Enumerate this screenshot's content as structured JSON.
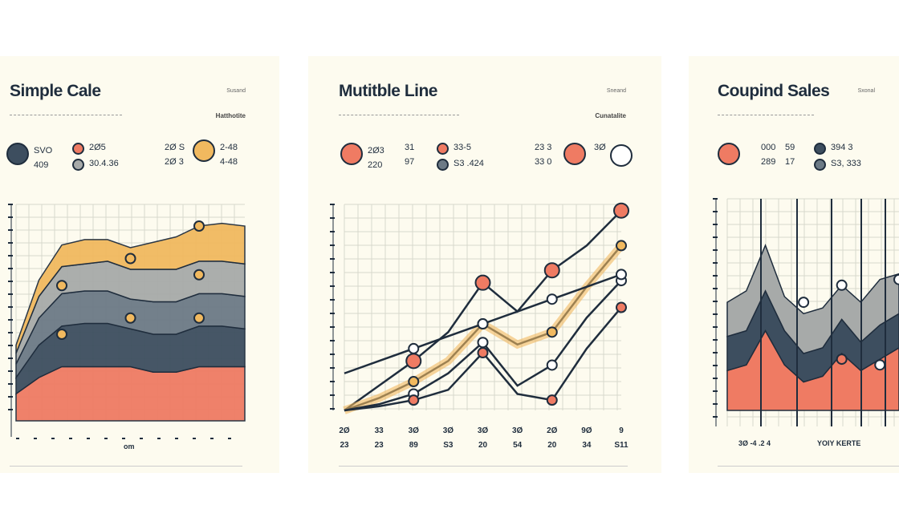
{
  "colors": {
    "navy": "#3d4e5f",
    "salmon": "#ef7b63",
    "gold": "#f1b95f",
    "gray": "#a7aaa9",
    "slate": "#6c7a86",
    "ink": "#1f2d3d"
  },
  "cards": [
    {
      "title": "Simple Cale",
      "tag": "Susand",
      "subtitle": "Hatthotite",
      "stats": [
        {
          "dot": "navy",
          "big": true,
          "lines": [
            "SVO",
            "409"
          ]
        },
        {
          "dot": "salmon",
          "lines": [
            "2Ø5"
          ]
        },
        {
          "dot": "gray",
          "lines": [
            "30.4.36"
          ]
        },
        {
          "lines": [
            "2Ø S",
            "2Ø 3"
          ]
        },
        {
          "dot": "gold",
          "big": true,
          "lines": [
            "2-48",
            "4-48"
          ]
        }
      ],
      "xlabel": "om"
    },
    {
      "title": "Mutitble Line",
      "tag": "Sneand",
      "subtitle": "Cunatalite",
      "stats": [
        {
          "dot": "salmon",
          "big": true,
          "lines": [
            "2Ø3",
            "220"
          ]
        },
        {
          "lines": [
            "31",
            "97"
          ]
        },
        {
          "dot": "salmon",
          "lines": [
            "33-5"
          ]
        },
        {
          "dot": "slate",
          "lines": [
            "S3 .424"
          ]
        },
        {
          "lines": [
            "23 3",
            "33 0"
          ]
        },
        {
          "dot": "salmon",
          "big": true,
          "lines": []
        },
        {
          "lines": [
            "3Ø"
          ]
        },
        {
          "dot": "white",
          "big": true,
          "lines": []
        }
      ],
      "ticks": [
        [
          "2Ø",
          "23"
        ],
        [
          "33",
          "23"
        ],
        [
          "3Ø",
          "89"
        ],
        [
          "3Ø",
          "S3"
        ],
        [
          "3Ø",
          "20"
        ],
        [
          "3Ø",
          "54"
        ],
        [
          "2Ø",
          "20"
        ],
        [
          "9Ø",
          "34"
        ],
        [
          "9",
          "S11"
        ]
      ]
    },
    {
      "title": "Coupind Sales",
      "tag": "Sxonal",
      "stats": [
        {
          "dot": "salmon",
          "big": true,
          "lines": []
        },
        {
          "lines": [
            "000",
            "289"
          ]
        },
        {
          "lines": [
            "59",
            "17"
          ]
        },
        {
          "dot": "navy",
          "lines": [
            "394 3"
          ]
        },
        {
          "dot": "slate",
          "lines": [
            "S3, 333"
          ]
        }
      ],
      "xlabel": "3Ø -4 .2 4",
      "xlabel2": "YOIY KERTE"
    }
  ],
  "chart_data": [
    {
      "type": "area",
      "title": "Simple Cale",
      "stacked": true,
      "x": [
        0,
        1,
        2,
        3,
        4,
        5,
        6,
        7,
        8,
        9,
        10
      ],
      "series": [
        {
          "color": "#ef7b63",
          "values": [
            10,
            16,
            20,
            20,
            20,
            20,
            18,
            18,
            20,
            20,
            20
          ]
        },
        {
          "color": "#3d4e5f",
          "values": [
            6,
            12,
            15,
            16,
            16,
            14,
            14,
            14,
            15,
            15,
            14
          ]
        },
        {
          "color": "#6c7a86",
          "values": [
            5,
            10,
            12,
            12,
            12,
            11,
            12,
            12,
            12,
            12,
            12
          ]
        },
        {
          "color": "#a7aaa9",
          "values": [
            4,
            8,
            10,
            10,
            11,
            11,
            12,
            12,
            12,
            12,
            12
          ]
        },
        {
          "color": "#f1b95f",
          "values": [
            3,
            6,
            8,
            9,
            8,
            8,
            10,
            12,
            13,
            14,
            14
          ]
        }
      ],
      "grid": true
    },
    {
      "type": "line",
      "title": "Mutitble Line",
      "x": [
        0,
        1,
        2,
        3,
        4,
        5,
        6,
        7,
        8
      ],
      "series": [
        {
          "color": "#1f2d3d",
          "marker": "#ef7b63",
          "values": [
            0,
            12,
            24,
            38,
            62,
            48,
            68,
            80,
            97
          ]
        },
        {
          "color": "#1f2d3d",
          "marker": "#f1b95f",
          "values": [
            0,
            6,
            14,
            24,
            42,
            32,
            38,
            60,
            80
          ]
        },
        {
          "color": "#1f2d3d",
          "marker": "#ffffff",
          "values": [
            0,
            3,
            8,
            18,
            33,
            12,
            22,
            45,
            63
          ]
        },
        {
          "color": "#1f2d3d",
          "marker": "#ef7b63",
          "values": [
            0,
            2,
            5,
            10,
            28,
            8,
            5,
            30,
            50
          ]
        },
        {
          "color": "#1f2d3d",
          "marker": "#ffffff",
          "values": [
            18,
            24,
            30,
            36,
            42,
            48,
            54,
            60,
            66
          ]
        }
      ],
      "grid": true
    },
    {
      "type": "area",
      "title": "Coupind Sales",
      "stacked": true,
      "x": [
        0,
        1,
        2,
        3,
        4,
        5,
        6,
        7,
        8,
        9
      ],
      "series": [
        {
          "color": "#ef7b63",
          "values": [
            14,
            16,
            28,
            16,
            10,
            12,
            20,
            14,
            18,
            22
          ]
        },
        {
          "color": "#3d4e5f",
          "values": [
            12,
            12,
            14,
            12,
            10,
            10,
            12,
            10,
            12,
            12
          ]
        },
        {
          "color": "#a7aaa9",
          "values": [
            12,
            14,
            16,
            12,
            14,
            14,
            12,
            14,
            16,
            14
          ]
        }
      ],
      "grid": true
    }
  ]
}
